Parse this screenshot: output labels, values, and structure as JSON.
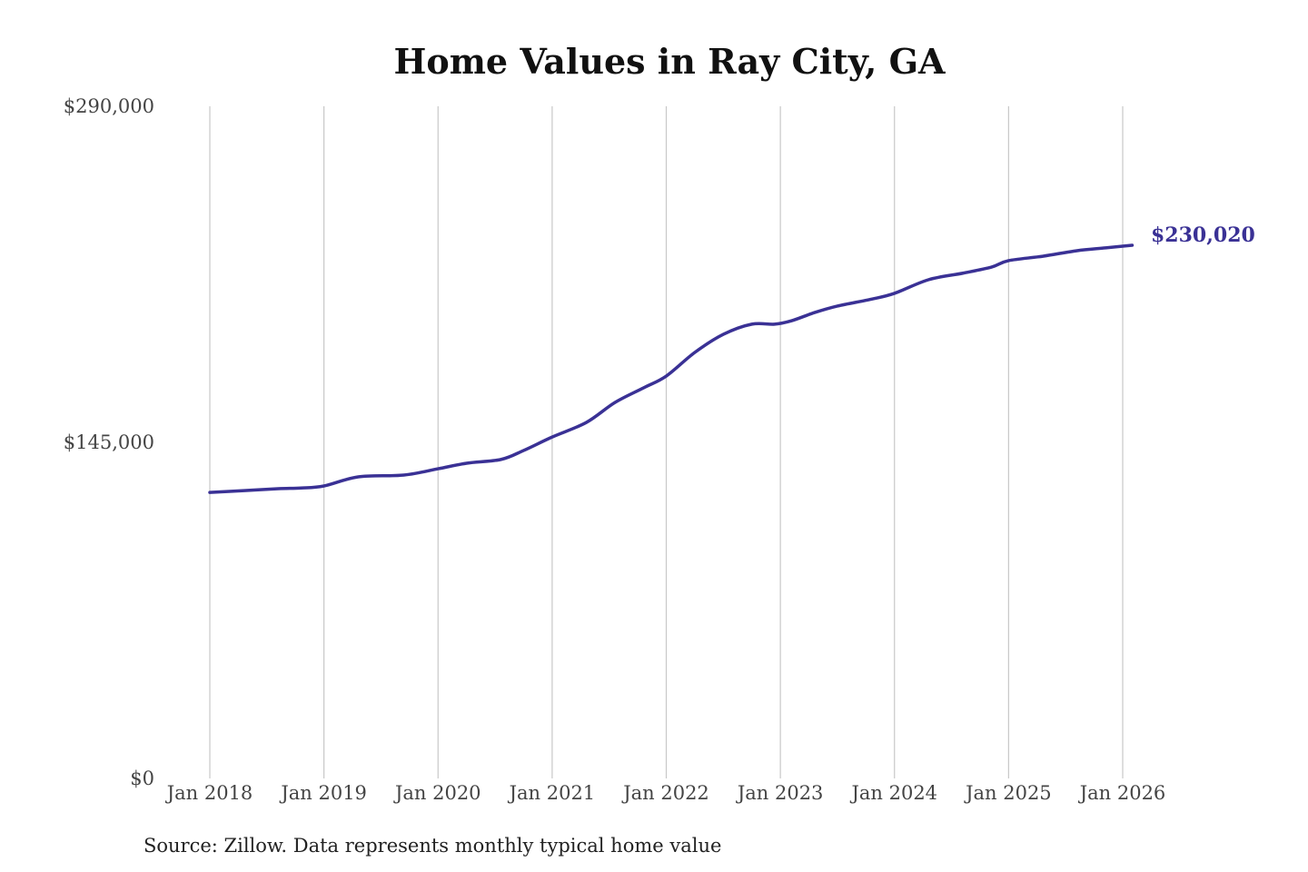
{
  "chart_data": {
    "type": "line",
    "title": "Home Values in Ray City, GA",
    "xlabel": "",
    "ylabel": "",
    "ylim": [
      0,
      290000
    ],
    "xlim": [
      2018.0,
      2026.083
    ],
    "y_ticks": [
      {
        "value": 0,
        "label": "$0"
      },
      {
        "value": 145000,
        "label": "$145,000"
      },
      {
        "value": 290000,
        "label": "$290,000"
      }
    ],
    "x_ticks": [
      {
        "value": 2018,
        "label": "Jan 2018"
      },
      {
        "value": 2019,
        "label": "Jan 2019"
      },
      {
        "value": 2020,
        "label": "Jan 2020"
      },
      {
        "value": 2021,
        "label": "Jan 2021"
      },
      {
        "value": 2022,
        "label": "Jan 2022"
      },
      {
        "value": 2023,
        "label": "Jan 2023"
      },
      {
        "value": 2024,
        "label": "Jan 2024"
      },
      {
        "value": 2025,
        "label": "Jan 2025"
      },
      {
        "value": 2026,
        "label": "Jan 2026"
      }
    ],
    "grid": "vertical",
    "series": [
      {
        "name": "Typical home value",
        "color": "#3a3195",
        "x": [
          2018.0,
          2018.3,
          2018.6,
          2018.8,
          2019.0,
          2019.3,
          2019.7,
          2020.0,
          2020.25,
          2020.55,
          2020.75,
          2021.0,
          2021.3,
          2021.55,
          2021.8,
          2022.0,
          2022.25,
          2022.5,
          2022.75,
          2022.95,
          2023.1,
          2023.3,
          2023.5,
          2023.8,
          2024.0,
          2024.3,
          2024.6,
          2024.85,
          2025.0,
          2025.3,
          2025.6,
          2025.85,
          2026.083
        ],
        "y": [
          123400,
          124200,
          125000,
          125300,
          126200,
          130100,
          130900,
          133600,
          136000,
          137600,
          141500,
          147300,
          153600,
          162200,
          168500,
          173600,
          183800,
          191600,
          196000,
          196000,
          197500,
          201000,
          203800,
          206800,
          209300,
          215200,
          218000,
          220600,
          223400,
          225300,
          227700,
          228900,
          230020
        ]
      }
    ],
    "end_label": "$230,020",
    "source": "Source: Zillow. Data represents monthly typical home value"
  }
}
